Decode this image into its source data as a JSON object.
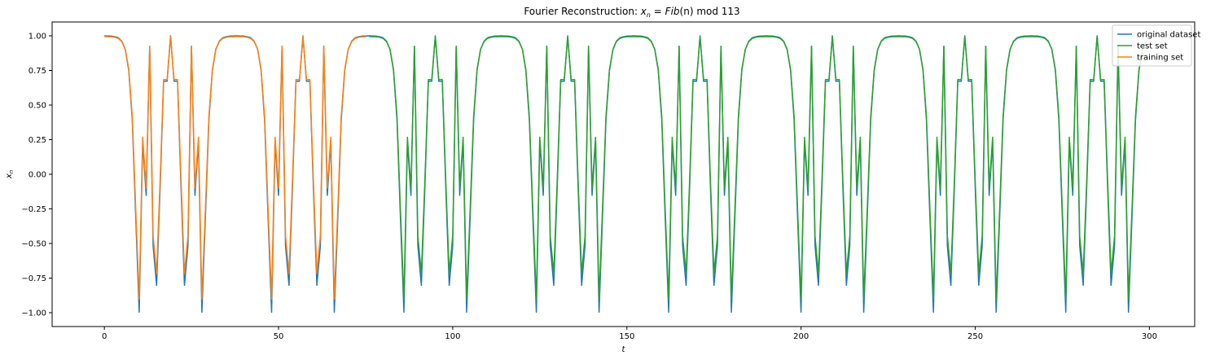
{
  "chart_data": {
    "type": "line",
    "title": "Fourier Reconstruction: x_n = Fib(n) mod 113",
    "title_parts": {
      "prefix": "Fourier Reconstruction: ",
      "var": "x",
      "sub": "n",
      "eq": " = ",
      "fn": "Fib",
      "arg": "(n)",
      "suffix": " mod 113"
    },
    "xlabel": "t",
    "ylabel_var": "x",
    "ylabel_sub": "n",
    "xlim": [
      -15,
      313
    ],
    "ylim": [
      -1.1,
      1.1
    ],
    "xticks": [
      0,
      50,
      100,
      150,
      200,
      250,
      300
    ],
    "yticks": [
      -1.0,
      -0.75,
      -0.5,
      -0.25,
      0.0,
      0.25,
      0.5,
      0.75,
      1.0
    ],
    "xtick_labels": [
      "0",
      "50",
      "100",
      "150",
      "200",
      "250",
      "300"
    ],
    "ytick_labels": [
      "−1.00",
      "−0.75",
      "−0.50",
      "−0.25",
      "0.00",
      "0.25",
      "0.50",
      "0.75",
      "1.00"
    ],
    "grid": false,
    "legend_position": "top-right",
    "modulus": 113,
    "n_points": 300,
    "train_points": 76,
    "series": [
      {
        "name": "original dataset",
        "color": "#1f77b4",
        "role": "original"
      },
      {
        "name": "test set",
        "color": "#2ca02c",
        "role": "test"
      },
      {
        "name": "training set",
        "color": "#ff7f0e",
        "role": "train"
      }
    ]
  }
}
